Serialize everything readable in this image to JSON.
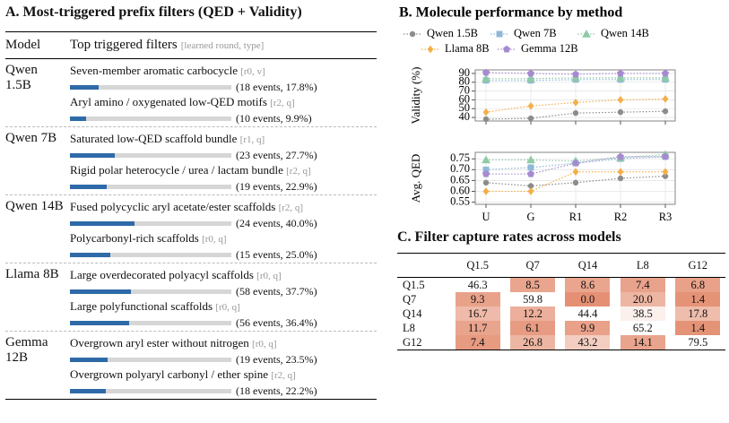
{
  "panel_a": {
    "title": "A. Most-triggered prefix filters (QED + Validity)",
    "header": {
      "model": "Model",
      "filters": "Top triggered filters",
      "filters_note": "[learned round, type]"
    },
    "xlim": [
      0,
      100
    ],
    "rows": [
      {
        "model": "Qwen 1.5B",
        "filters": [
          {
            "name": "Seven-member aromatic carbocycle",
            "tag": "[r0, v]",
            "share": 17.8,
            "label": "(18 events, 17.8%)"
          },
          {
            "name": "Aryl amino / oxygenated low-QED motifs",
            "tag": "[r2, q]",
            "share": 9.9,
            "label": "(10 events, 9.9%)"
          }
        ]
      },
      {
        "model": "Qwen 7B",
        "filters": [
          {
            "name": "Saturated low-QED scaffold bundle",
            "tag": "[r1, q]",
            "share": 27.7,
            "label": "(23 events, 27.7%)"
          },
          {
            "name": "Rigid polar heterocycle / urea / lactam bundle",
            "tag": "[r2, q]",
            "share": 22.9,
            "label": "(19 events, 22.9%)"
          }
        ]
      },
      {
        "model": "Qwen 14B",
        "filters": [
          {
            "name": "Fused polycyclic aryl acetate/ester scaffolds",
            "tag": "[r2, q]",
            "share": 40.0,
            "label": "(24 events, 40.0%)"
          },
          {
            "name": "Polycarbonyl-rich scaffolds",
            "tag": "[r0, q]",
            "share": 25.0,
            "label": "(15 events, 25.0%)"
          }
        ]
      },
      {
        "model": "Llama 8B",
        "filters": [
          {
            "name": "Large overdecorated polyacyl scaffolds",
            "tag": "[r0, q]",
            "share": 37.7,
            "label": "(58 events, 37.7%)"
          },
          {
            "name": "Large polyfunctional scaffolds",
            "tag": "[r0, q]",
            "share": 36.4,
            "label": "(56 events, 36.4%)"
          }
        ]
      },
      {
        "model": "Gemma 12B",
        "filters": [
          {
            "name": "Overgrown aryl ester without nitrogen",
            "tag": "[r0, q]",
            "share": 23.5,
            "label": "(19 events, 23.5%)"
          },
          {
            "name": "Overgrown polyaryl carbonyl / ether spine",
            "tag": "[r2, q]",
            "share": 22.2,
            "label": "(18 events, 22.2%)"
          }
        ]
      }
    ]
  },
  "panel_b": {
    "title": "B. Molecule performance by method"
  },
  "chart_data": [
    {
      "type": "line",
      "ylabel": "Validity (%)",
      "ylim": [
        36,
        94
      ],
      "yticks": [
        40,
        50,
        60,
        70,
        80,
        90
      ],
      "grid": true,
      "series": [
        {
          "name": "Qwen 1.5B",
          "color": "#8c8c8c",
          "marker": "circle",
          "values": [
            38,
            39,
            45,
            46,
            47
          ]
        },
        {
          "name": "Qwen 7B",
          "color": "#8fb8d8",
          "marker": "square",
          "values": [
            82,
            82,
            83,
            83,
            83
          ]
        },
        {
          "name": "Qwen 14B",
          "color": "#8fcaa6",
          "marker": "triangle",
          "values": [
            84,
            84,
            85,
            85,
            85
          ]
        },
        {
          "name": "Llama 8B",
          "color": "#f3b04a",
          "marker": "diamond",
          "values": [
            46,
            53,
            57,
            60,
            61
          ]
        },
        {
          "name": "Gemma 12B",
          "color": "#a68bd0",
          "marker": "pentagon",
          "values": [
            91,
            90,
            89,
            90,
            90
          ]
        }
      ]
    },
    {
      "type": "line",
      "ylabel": "Avg. QED",
      "ylim": [
        0.54,
        0.78
      ],
      "yticks": [
        0.55,
        {
          "value": 0.6,
          "label": "0.60"
        },
        0.65,
        {
          "value": 0.7,
          "label": "0.70"
        },
        0.75
      ],
      "grid": true,
      "categories": [
        "U",
        "G",
        "R1",
        "R2",
        "R3"
      ],
      "series": [
        {
          "name": "Qwen 1.5B",
          "color": "#8c8c8c",
          "marker": "circle",
          "values": [
            0.64,
            0.625,
            0.64,
            0.66,
            0.67
          ]
        },
        {
          "name": "Qwen 7B",
          "color": "#8fb8d8",
          "marker": "square",
          "values": [
            0.7,
            0.71,
            0.73,
            0.75,
            0.76
          ]
        },
        {
          "name": "Qwen 14B",
          "color": "#8fcaa6",
          "marker": "triangle",
          "values": [
            0.745,
            0.745,
            0.74,
            0.755,
            0.77
          ]
        },
        {
          "name": "Llama 8B",
          "color": "#f3b04a",
          "marker": "diamond",
          "values": [
            0.6,
            0.6,
            0.69,
            0.69,
            0.69
          ]
        },
        {
          "name": "Gemma 12B",
          "color": "#a68bd0",
          "marker": "pentagon",
          "values": [
            0.68,
            0.68,
            0.73,
            0.76,
            0.76
          ]
        }
      ]
    }
  ],
  "panel_c": {
    "title": "C. Filter capture rates across models",
    "shade_color": "#e07d5c",
    "columns": [
      "Q1.5",
      "Q7",
      "Q14",
      "L8",
      "G12"
    ],
    "rows": [
      {
        "label": "Q1.5",
        "cells": [
          "46.3",
          "8.5",
          "8.6",
          "7.4",
          "6.8"
        ]
      },
      {
        "label": "Q7",
        "cells": [
          "9.3",
          "59.8",
          "0.0",
          "20.0",
          "1.4"
        ]
      },
      {
        "label": "Q14",
        "cells": [
          "16.7",
          "12.2",
          "44.4",
          "38.5",
          "17.8"
        ]
      },
      {
        "label": "L8",
        "cells": [
          "11.7",
          "6.1",
          "9.9",
          "65.2",
          "1.4"
        ]
      },
      {
        "label": "G12",
        "cells": [
          "7.4",
          "26.8",
          "43.2",
          "14.1",
          "79.5"
        ]
      }
    ]
  }
}
